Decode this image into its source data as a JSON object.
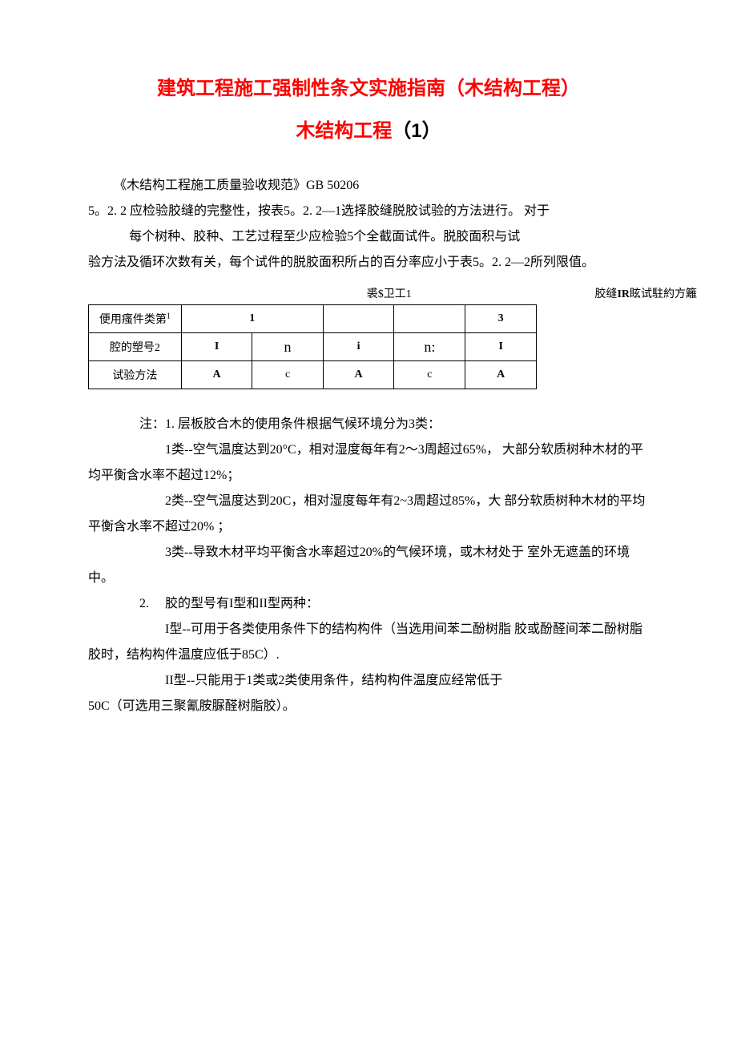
{
  "title_main": "建筑工程施工强制性条文实施指南（木结构工程）",
  "title_sub_a": "木结构工程",
  "title_sub_b": "（1）",
  "p1": "《木结构工程施工质量验收规范》GB 50206",
  "p2": "5。2. 2 应检验胶缝的完整性，按表5。2. 2—1选择胶缝脱胶试验的方法进行。 对于",
  "p3": "每个树种、胶种、工艺过程至少应检验5个全截面试件。脱胶面积与试",
  "p4": "验方法及循环次数有关，每个试件的脱胶面积所占的百分率应小于表5。2. 2—2所列限值。",
  "table": {
    "caption_center": "裘$卫工1",
    "caption_right_a": "胶缝",
    "caption_right_b": "IR",
    "caption_right_c": "眩试駐約方籬",
    "r1c0": "便用瘙件类第",
    "r1c0_sup": "1",
    "r1c1": "1",
    "r1c2": "",
    "r1c3": "",
    "r1c4": "3",
    "r2c0": "腔的塑号2",
    "r2c1": "I",
    "r2c2": "n",
    "r2c3": "i",
    "r2c4": "n:",
    "r2c5": "I",
    "r3c0": "试验方法",
    "r3c1": "A",
    "r3c2": "c",
    "r3c3": "A",
    "r3c4": "c",
    "r3c5": "A"
  },
  "n_lead": "注：1. 层板胶合木的使用条件根据气候环境分为3类：",
  "n1a": "1类--空气温度达到20°C，相对湿度每年有2〜3周超过65%， 大部分软质树种木材的平均平衡含水率不超过12%；",
  "n1b": "2类--空气温度达到20C，相对湿度每年有2~3周超过85%，大 部分软质树种木材的平均平衡含水率不超过20% ；",
  "n1c": "3类--导致木材平均平衡含水率超过20%的气候环境，或木材处于 室外无遮盖的环境中。",
  "n2": "2.　 胶的型号有I型和II型两种：",
  "n2a": "I型--可用于各类使用条件下的结构构件（当选用间苯二酚树脂 胶或酚醛间苯二酚树脂胶时，结构构件温度应低于85C）.",
  "n2b": "II型--只能用于1类或2类使用条件，结构构件温度应经常低于",
  "n2c": "50C（可选用三聚氰胺脲醛树脂胶）。"
}
